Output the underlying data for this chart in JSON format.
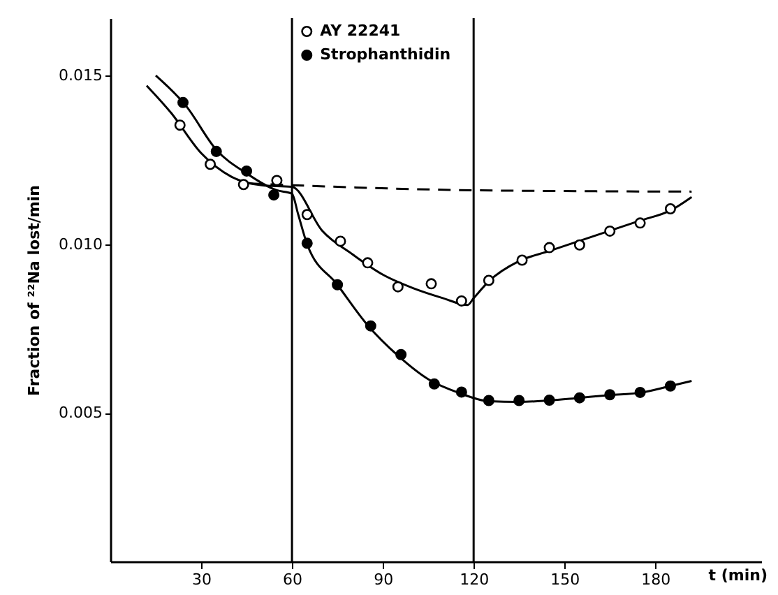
{
  "chart_data": {
    "type": "scatter",
    "xlabel": "t (min)",
    "ylabel": "Fraction of ²²Na lost/min",
    "xlim": [
      0,
      215
    ],
    "ylim": [
      0.0006,
      0.0167
    ],
    "xticks": [
      30,
      60,
      90,
      120,
      150,
      180
    ],
    "yticks": [
      {
        "value": 0.005,
        "label": "0.005"
      },
      {
        "value": 0.01,
        "label": "0.010"
      },
      {
        "value": 0.015,
        "label": "0.015"
      }
    ],
    "legend": "top",
    "marker": "circle",
    "grid": false,
    "ref_lines": [
      {
        "axis": "x",
        "value": 60,
        "color": "#000000"
      },
      {
        "axis": "x",
        "value": 120,
        "color": "#000000"
      }
    ],
    "series": [
      {
        "name": "AY 22241",
        "color": "#000000",
        "x": [
          23,
          33,
          44,
          55,
          65,
          76,
          85,
          95,
          106,
          116,
          125,
          136,
          145,
          155,
          165,
          175,
          185
        ],
        "values": [
          0.01353,
          0.01237,
          0.01177,
          0.01189,
          0.01088,
          0.01009,
          0.00945,
          0.00874,
          0.00883,
          0.00832,
          0.00893,
          0.00953,
          0.0099,
          0.00998,
          0.01039,
          0.01063,
          0.01105
        ]
      },
      {
        "name": "Strophanthidin",
        "color": "#000000",
        "x": [
          24,
          35,
          45,
          54,
          65,
          75,
          86,
          96,
          107,
          116,
          125,
          135,
          145,
          155,
          165,
          175,
          185
        ],
        "values": [
          0.0142,
          0.01275,
          0.01217,
          0.01146,
          0.01003,
          0.0088,
          0.00758,
          0.00673,
          0.00586,
          0.00562,
          0.00537,
          0.00537,
          0.00538,
          0.00545,
          0.00554,
          0.00561,
          0.0058
        ]
      },
      {
        "type": "line",
        "color": "#000000",
        "line_style": "solid",
        "marker": "none",
        "x": [
          12,
          20,
          30,
          40,
          50,
          60,
          70,
          80,
          90,
          100,
          110,
          118,
          120,
          125,
          135,
          145,
          155,
          165,
          175,
          185,
          192
        ],
        "values": [
          0.0147,
          0.0139,
          0.0127,
          0.012,
          0.01175,
          0.0117,
          0.0104,
          0.0097,
          0.0091,
          0.0087,
          0.0084,
          0.0082,
          0.0084,
          0.0089,
          0.0095,
          0.0098,
          0.0101,
          0.0104,
          0.0107,
          0.011,
          0.0114
        ]
      },
      {
        "type": "line",
        "color": "#000000",
        "line_style": "solid",
        "marker": "none",
        "x": [
          15,
          25,
          35,
          45,
          55,
          60,
          62,
          65,
          75,
          85,
          95,
          105,
          115,
          125,
          135,
          145,
          155,
          165,
          175,
          185,
          192
        ],
        "values": [
          0.015,
          0.0141,
          0.0128,
          0.0121,
          0.0116,
          0.0115,
          0.0109,
          0.01,
          0.0088,
          0.0076,
          0.0067,
          0.006,
          0.0056,
          0.00535,
          0.00533,
          0.00537,
          0.00545,
          0.00553,
          0.0056,
          0.0058,
          0.00595
        ]
      },
      {
        "type": "line",
        "color": "#000000",
        "line_style": "dashed",
        "marker": "none",
        "x": [
          46,
          60,
          120,
          192
        ],
        "values": [
          0.0118,
          0.01175,
          0.0116,
          0.01156
        ]
      }
    ]
  }
}
